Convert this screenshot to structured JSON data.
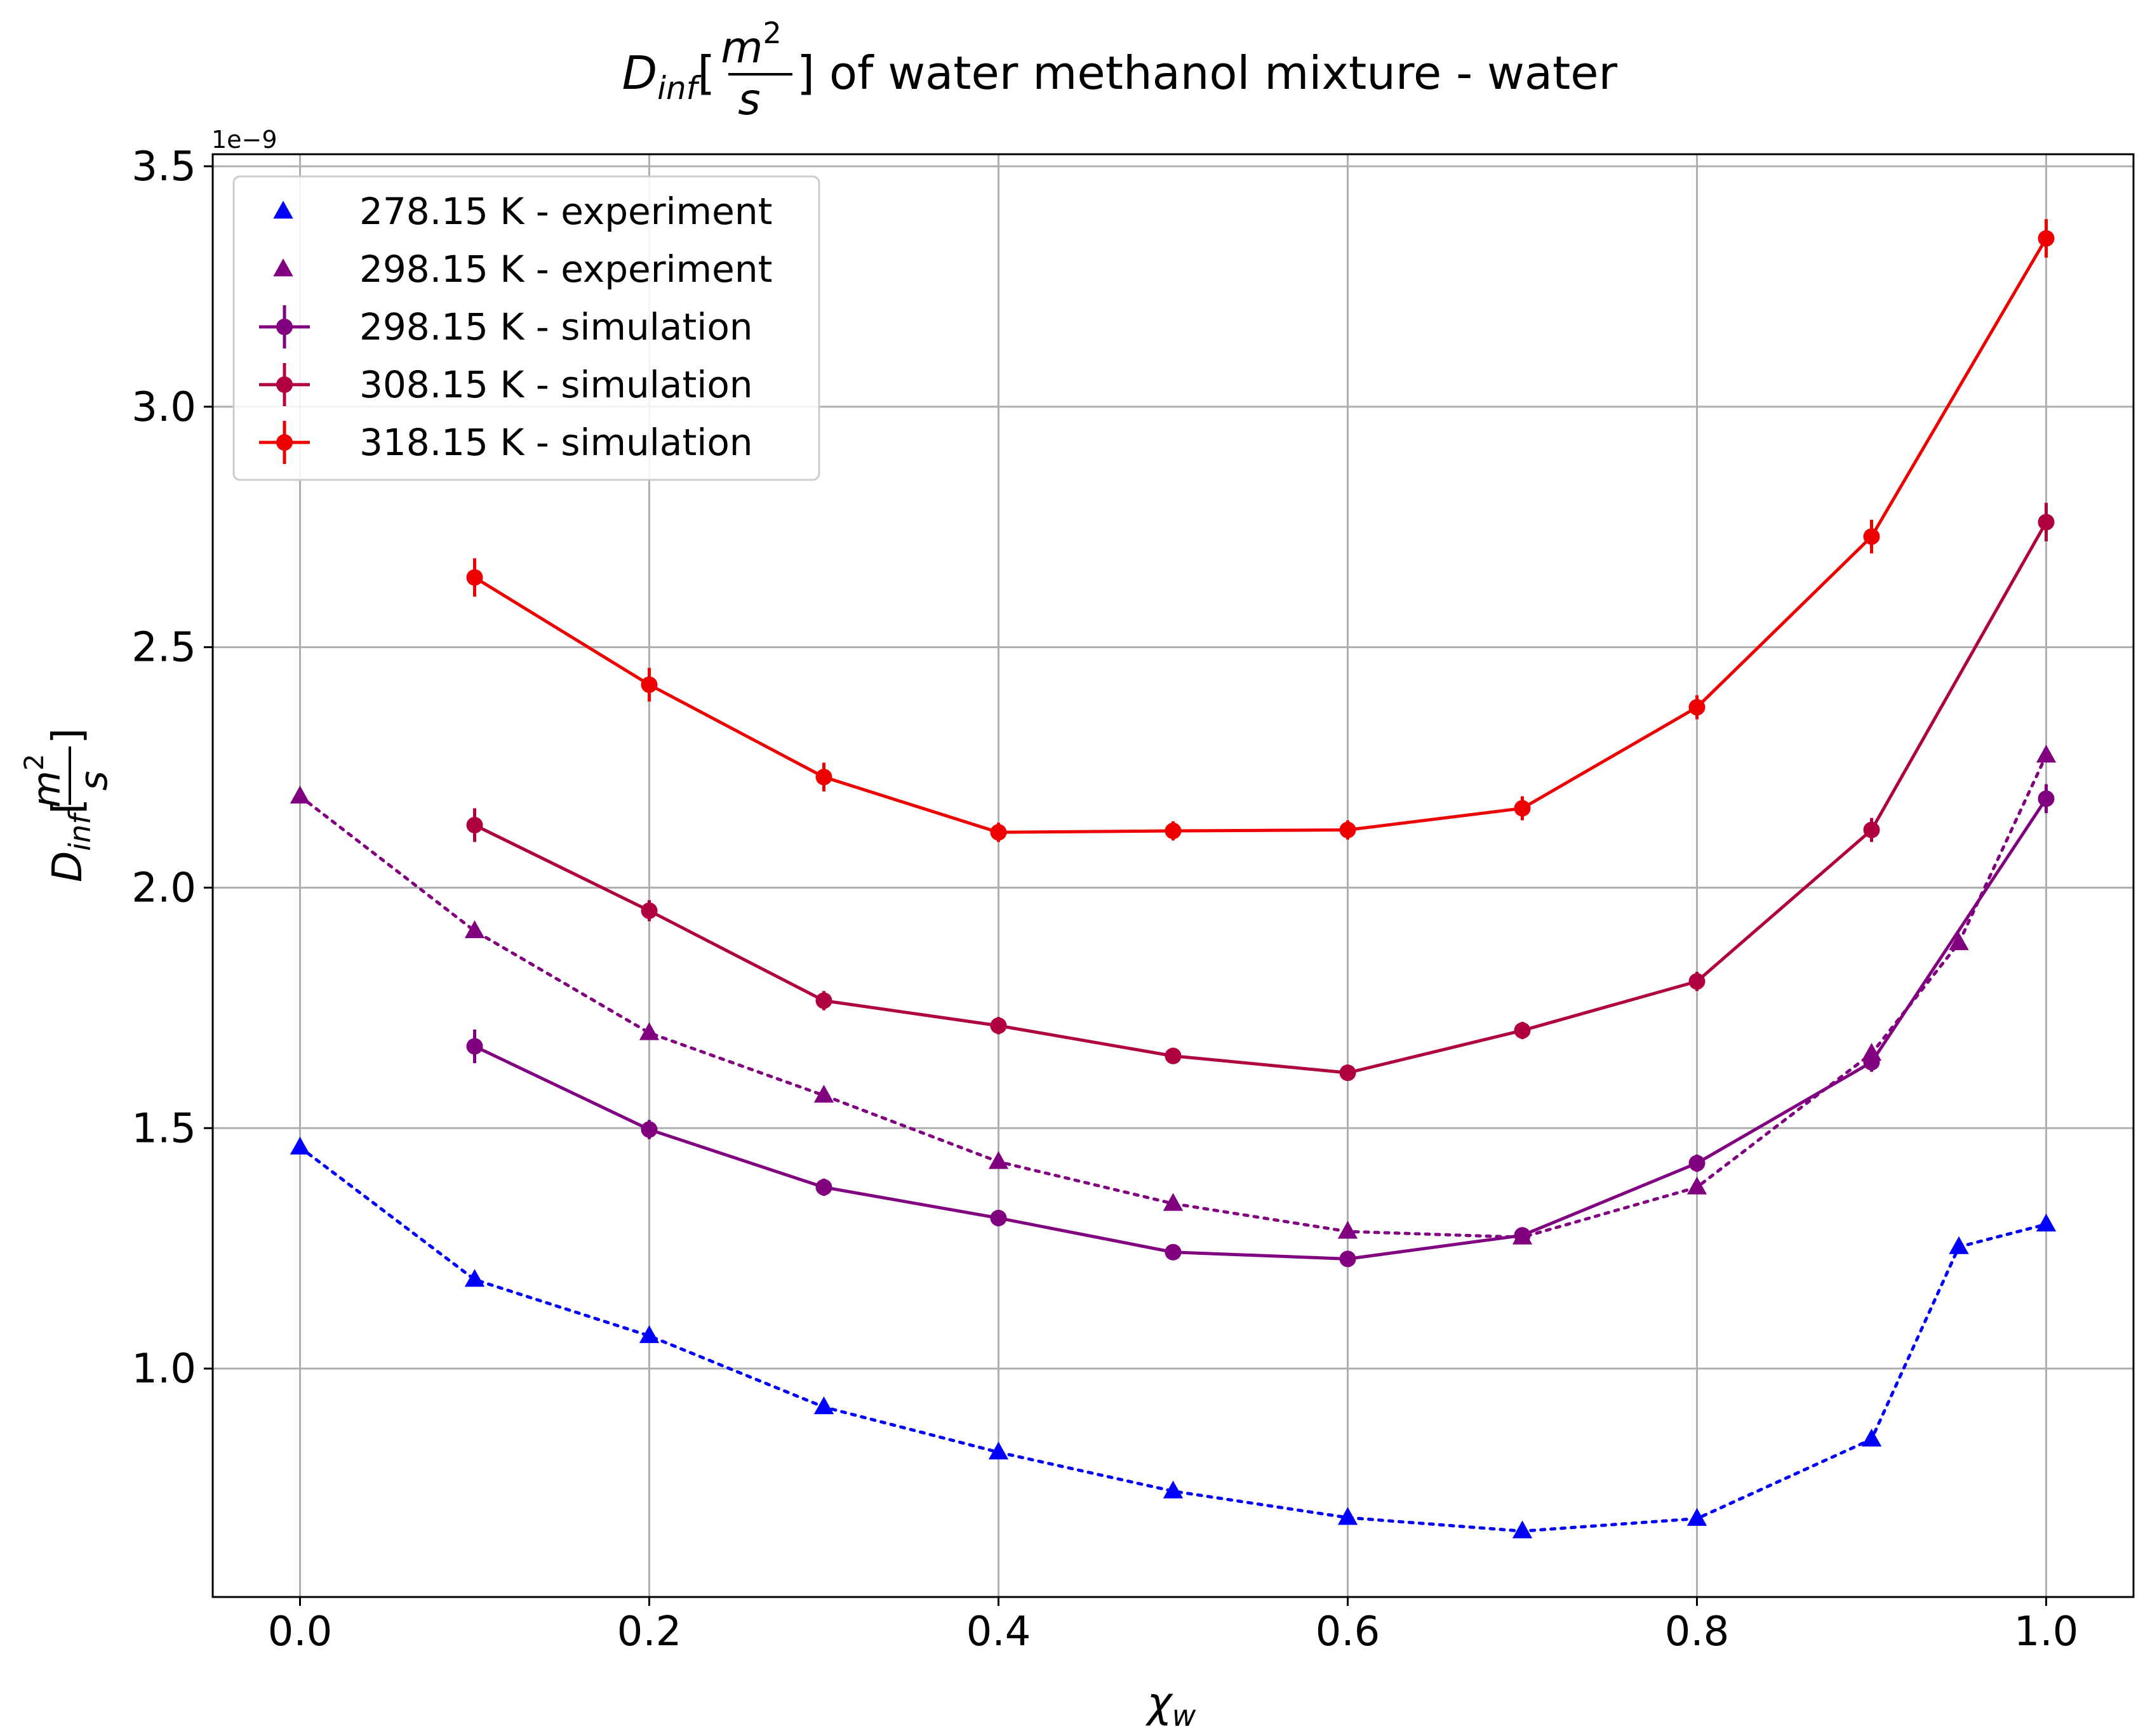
{
  "chart_data": {
    "type": "line",
    "title": {
      "sym": "D",
      "sub": "inf",
      "frac_num": "m",
      "frac_num_sup": "2",
      "frac_den": "s",
      "suffix": "of water methanol mixture - water"
    },
    "ylabel": {
      "sym": "D",
      "sub": "inf",
      "frac_num": "m",
      "frac_num_sup": "2",
      "frac_den": "s"
    },
    "xlabel": {
      "sym": "χ",
      "sub": "w"
    },
    "y_offset_text": "1e−9",
    "y_scale_factor": 1e-09,
    "xlim": [
      -0.05,
      1.05
    ],
    "ylim": [
      0.525,
      3.525
    ],
    "x_ticks": [
      0.0,
      0.2,
      0.4,
      0.6,
      0.8,
      1.0
    ],
    "x_tick_labels": [
      "0.0",
      "0.2",
      "0.4",
      "0.6",
      "0.8",
      "1.0"
    ],
    "y_ticks": [
      1.0,
      1.5,
      2.0,
      2.5,
      3.0,
      3.5
    ],
    "y_tick_labels": [
      "1.0",
      "1.5",
      "2.0",
      "2.5",
      "3.0",
      "3.5"
    ],
    "grid": true,
    "legend_position": "top-left",
    "series": [
      {
        "name": "278.15 K - experiment",
        "color": "#0000ff",
        "marker": "triangle",
        "line_style": "dotted",
        "x": [
          0.0,
          0.1,
          0.2,
          0.3,
          0.4,
          0.5,
          0.6,
          0.7,
          0.8,
          0.9,
          0.95,
          1.0
        ],
        "y": [
          1.46,
          1.185,
          1.068,
          0.92,
          0.826,
          0.745,
          0.69,
          0.662,
          0.688,
          0.853,
          1.253,
          1.3
        ]
      },
      {
        "name": "298.15 K - experiment",
        "color": "#800080",
        "marker": "triangle",
        "line_style": "dotted",
        "x": [
          0.0,
          0.1,
          0.2,
          0.3,
          0.4,
          0.5,
          0.6,
          0.7,
          0.8,
          0.9,
          0.95,
          1.0
        ],
        "y": [
          2.19,
          1.91,
          1.698,
          1.568,
          1.43,
          1.343,
          1.285,
          1.273,
          1.377,
          1.655,
          1.885,
          2.275
        ]
      },
      {
        "name": "298.15 K - simulation",
        "color": "#800080",
        "marker": "circle",
        "line_style": "solid",
        "x": [
          0.1,
          0.2,
          0.3,
          0.4,
          0.5,
          0.6,
          0.7,
          0.8,
          0.9,
          1.0
        ],
        "y": [
          1.67,
          1.497,
          1.377,
          1.313,
          1.242,
          1.228,
          1.277,
          1.427,
          1.637,
          2.185
        ],
        "err": [
          0.035,
          0.02,
          0.018,
          0.017,
          0.015,
          0.015,
          0.016,
          0.018,
          0.02,
          0.03
        ]
      },
      {
        "name": "308.15 K - simulation",
        "color": "#b00040",
        "marker": "circle",
        "line_style": "solid",
        "x": [
          0.1,
          0.2,
          0.3,
          0.4,
          0.5,
          0.6,
          0.7,
          0.8,
          0.9,
          1.0
        ],
        "y": [
          2.13,
          1.952,
          1.765,
          1.713,
          1.65,
          1.615,
          1.703,
          1.805,
          2.12,
          2.76
        ],
        "err": [
          0.035,
          0.022,
          0.02,
          0.018,
          0.017,
          0.017,
          0.018,
          0.02,
          0.025,
          0.04
        ]
      },
      {
        "name": "318.15 K - simulation",
        "color": "#ee0000",
        "marker": "circle",
        "line_style": "solid",
        "x": [
          0.1,
          0.2,
          0.3,
          0.4,
          0.5,
          0.6,
          0.7,
          0.8,
          0.9,
          1.0
        ],
        "y": [
          2.645,
          2.422,
          2.23,
          2.115,
          2.118,
          2.12,
          2.165,
          2.375,
          2.73,
          3.35
        ],
        "err": [
          0.04,
          0.035,
          0.03,
          0.02,
          0.02,
          0.02,
          0.025,
          0.025,
          0.035,
          0.04
        ]
      }
    ]
  }
}
